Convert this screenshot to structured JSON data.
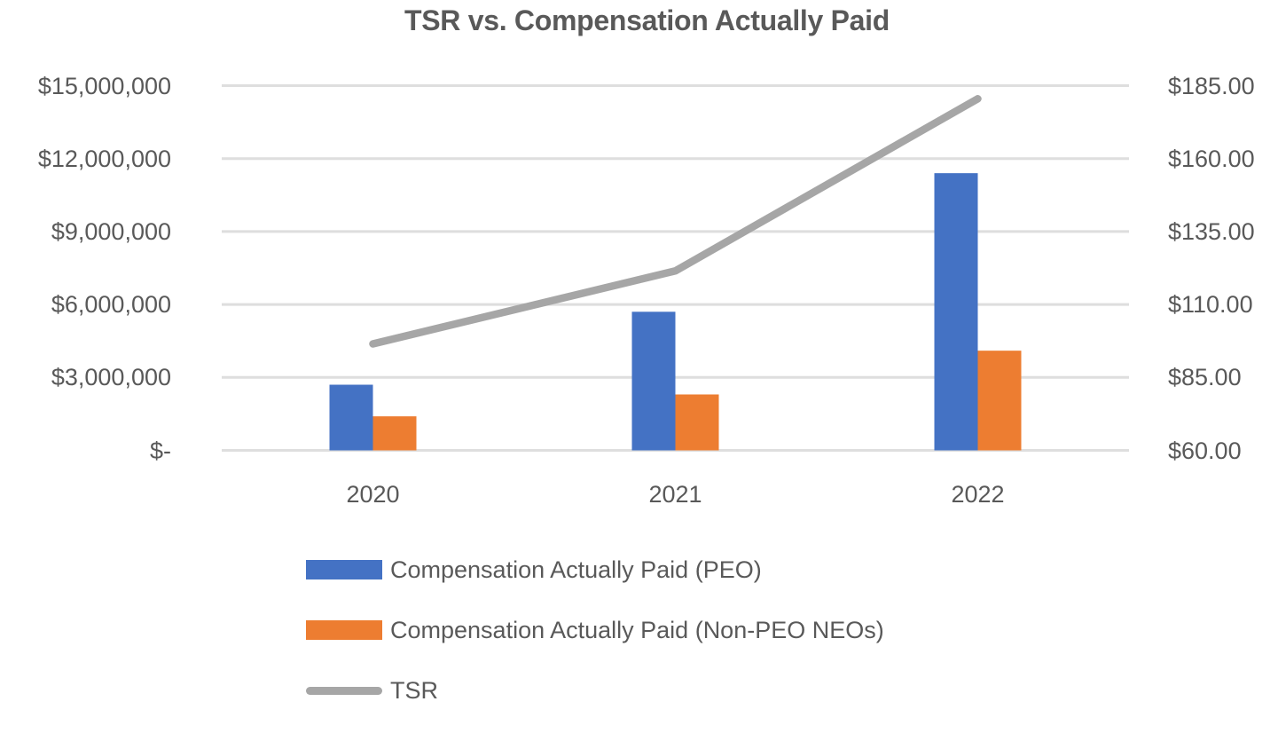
{
  "title": "TSR vs. Compensation Actually Paid",
  "colors": {
    "bar_peo": "#4472C4",
    "bar_non_peo": "#ED7D31",
    "tsr_line": "#A6A6A6",
    "gridline": "#DEDEDE",
    "text": "#595959",
    "background": "#FFFFFF"
  },
  "chart_data": {
    "type": "bar",
    "subtype": "combo-bar-line-dual-axis",
    "title": "TSR vs. Compensation Actually Paid",
    "categories": [
      "2020",
      "2021",
      "2022"
    ],
    "series": [
      {
        "name": "Compensation Actually Paid (PEO)",
        "type": "bar",
        "axis": "left",
        "color": "#4472C4",
        "values": [
          2700000,
          5700000,
          11400000
        ]
      },
      {
        "name": "Compensation Actually Paid (Non-PEO NEOs)",
        "type": "bar",
        "axis": "left",
        "color": "#ED7D31",
        "values": [
          1400000,
          2300000,
          4100000
        ]
      },
      {
        "name": "TSR",
        "type": "line",
        "axis": "right",
        "color": "#A6A6A6",
        "values": [
          96.5,
          121.5,
          180.5
        ]
      }
    ],
    "left_axis": {
      "min": 0,
      "max": 15000000,
      "tick_step": 3000000,
      "tick_labels": [
        "$-",
        "$3,000,000",
        "$6,000,000",
        "$9,000,000",
        "$12,000,000",
        "$15,000,000"
      ]
    },
    "right_axis": {
      "min": 60,
      "max": 185,
      "tick_step": 25,
      "tick_labels": [
        "$60.00",
        "$85.00",
        "$110.00",
        "$135.00",
        "$160.00",
        "$185.00"
      ]
    },
    "xlabel": "",
    "ylabel": "",
    "grid": true,
    "legend_position": "bottom-left"
  }
}
